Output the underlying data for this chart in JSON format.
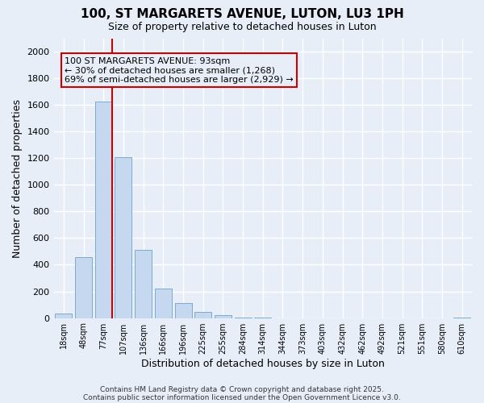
{
  "title": "100, ST MARGARETS AVENUE, LUTON, LU3 1PH",
  "subtitle": "Size of property relative to detached houses in Luton",
  "xlabel": "Distribution of detached houses by size in Luton",
  "ylabel": "Number of detached properties",
  "categories": [
    "18sqm",
    "48sqm",
    "77sqm",
    "107sqm",
    "136sqm",
    "166sqm",
    "196sqm",
    "225sqm",
    "255sqm",
    "284sqm",
    "314sqm",
    "344sqm",
    "373sqm",
    "403sqm",
    "432sqm",
    "462sqm",
    "492sqm",
    "521sqm",
    "551sqm",
    "580sqm",
    "610sqm"
  ],
  "values": [
    35,
    460,
    1625,
    1210,
    510,
    220,
    115,
    45,
    20,
    5,
    2,
    0,
    0,
    0,
    0,
    0,
    0,
    0,
    0,
    0,
    5
  ],
  "bar_color": "#c5d8f0",
  "bar_edgecolor": "#7aabcf",
  "ylim": [
    0,
    2100
  ],
  "yticks": [
    0,
    200,
    400,
    600,
    800,
    1000,
    1200,
    1400,
    1600,
    1800,
    2000
  ],
  "vline_color": "#cc0000",
  "annotation_title": "100 ST MARGARETS AVENUE: 93sqm",
  "annotation_line1": "← 30% of detached houses are smaller (1,268)",
  "annotation_line2": "69% of semi-detached houses are larger (2,929) →",
  "annotation_box_edgecolor": "#cc0000",
  "footer_line1": "Contains HM Land Registry data © Crown copyright and database right 2025.",
  "footer_line2": "Contains public sector information licensed under the Open Government Licence v3.0.",
  "background_color": "#e8eef8",
  "grid_color": "#ffffff"
}
